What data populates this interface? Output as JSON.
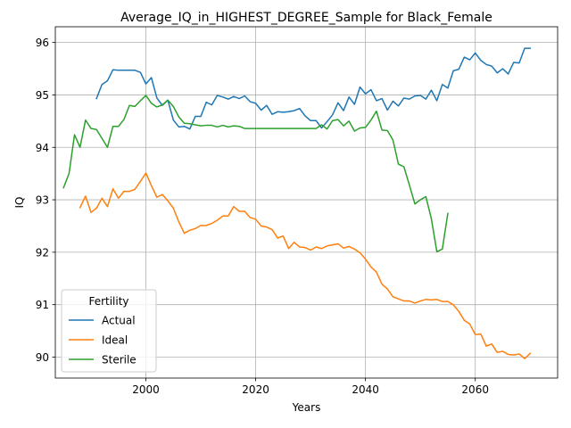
{
  "chart_data": {
    "type": "line",
    "title": "Average_IQ_in_HIGHEST_DEGREE_Sample for Black_Female",
    "xlabel": "Years",
    "ylabel": "IQ",
    "xlim": [
      1983.5,
      2075
    ],
    "ylim": [
      89.6,
      96.3
    ],
    "xticks": [
      2000,
      2020,
      2040,
      2060
    ],
    "yticks": [
      90,
      91,
      92,
      93,
      94,
      95,
      96
    ],
    "grid": true,
    "legend": {
      "title": "Fertility",
      "placement": "lower-left"
    },
    "series": [
      {
        "name": "Actual",
        "color": "#1f77b4",
        "points": [
          [
            1991,
            94.93
          ],
          [
            1992,
            95.2
          ],
          [
            1993,
            95.27
          ],
          [
            1994,
            95.48
          ],
          [
            1995,
            95.47
          ],
          [
            1996,
            95.47
          ],
          [
            1997,
            95.47
          ],
          [
            1998,
            95.47
          ],
          [
            1999,
            95.43
          ],
          [
            2000,
            95.21
          ],
          [
            2001,
            95.33
          ],
          [
            2002,
            94.94
          ],
          [
            2003,
            94.8
          ],
          [
            2004,
            94.9
          ],
          [
            2005,
            94.52
          ],
          [
            2006,
            94.39
          ],
          [
            2007,
            94.4
          ],
          [
            2008,
            94.35
          ],
          [
            2009,
            94.59
          ],
          [
            2010,
            94.59
          ],
          [
            2011,
            94.86
          ],
          [
            2012,
            94.81
          ],
          [
            2013,
            94.99
          ],
          [
            2014,
            94.96
          ],
          [
            2015,
            94.92
          ],
          [
            2016,
            94.97
          ],
          [
            2017,
            94.93
          ],
          [
            2018,
            94.98
          ],
          [
            2019,
            94.87
          ],
          [
            2020,
            94.84
          ],
          [
            2021,
            94.71
          ],
          [
            2022,
            94.8
          ],
          [
            2023,
            94.63
          ],
          [
            2024,
            94.68
          ],
          [
            2025,
            94.67
          ],
          [
            2026,
            94.68
          ],
          [
            2027,
            94.7
          ],
          [
            2028,
            94.74
          ],
          [
            2029,
            94.6
          ],
          [
            2030,
            94.51
          ],
          [
            2031,
            94.51
          ],
          [
            2032,
            94.37
          ],
          [
            2033,
            94.49
          ],
          [
            2034,
            94.62
          ],
          [
            2035,
            94.85
          ],
          [
            2036,
            94.7
          ],
          [
            2037,
            94.96
          ],
          [
            2038,
            94.82
          ],
          [
            2039,
            95.15
          ],
          [
            2040,
            95.02
          ],
          [
            2041,
            95.1
          ],
          [
            2042,
            94.89
          ],
          [
            2043,
            94.93
          ],
          [
            2044,
            94.71
          ],
          [
            2045,
            94.88
          ],
          [
            2046,
            94.79
          ],
          [
            2047,
            94.94
          ],
          [
            2048,
            94.92
          ],
          [
            2049,
            94.98
          ],
          [
            2050,
            94.99
          ],
          [
            2051,
            94.92
          ],
          [
            2052,
            95.09
          ],
          [
            2053,
            94.89
          ],
          [
            2054,
            95.2
          ],
          [
            2055,
            95.13
          ],
          [
            2056,
            95.46
          ],
          [
            2057,
            95.49
          ],
          [
            2058,
            95.72
          ],
          [
            2059,
            95.67
          ],
          [
            2060,
            95.8
          ],
          [
            2061,
            95.66
          ],
          [
            2062,
            95.58
          ],
          [
            2063,
            95.55
          ],
          [
            2064,
            95.42
          ],
          [
            2065,
            95.5
          ],
          [
            2066,
            95.4
          ],
          [
            2067,
            95.62
          ],
          [
            2068,
            95.61
          ],
          [
            2069,
            95.89
          ],
          [
            2070,
            95.89
          ]
        ]
      },
      {
        "name": "Ideal",
        "color": "#ff7f0e",
        "points": [
          [
            1988,
            92.85
          ],
          [
            1989,
            93.07
          ],
          [
            1990,
            92.76
          ],
          [
            1991,
            92.84
          ],
          [
            1992,
            93.03
          ],
          [
            1993,
            92.87
          ],
          [
            1994,
            93.21
          ],
          [
            1995,
            93.03
          ],
          [
            1996,
            93.16
          ],
          [
            1997,
            93.16
          ],
          [
            1998,
            93.2
          ],
          [
            1999,
            93.35
          ],
          [
            2000,
            93.51
          ],
          [
            2001,
            93.27
          ],
          [
            2002,
            93.05
          ],
          [
            2003,
            93.1
          ],
          [
            2004,
            92.98
          ],
          [
            2005,
            92.84
          ],
          [
            2006,
            92.58
          ],
          [
            2007,
            92.36
          ],
          [
            2008,
            92.42
          ],
          [
            2009,
            92.45
          ],
          [
            2010,
            92.51
          ],
          [
            2011,
            92.51
          ],
          [
            2012,
            92.55
          ],
          [
            2013,
            92.61
          ],
          [
            2014,
            92.69
          ],
          [
            2015,
            92.69
          ],
          [
            2016,
            92.87
          ],
          [
            2017,
            92.78
          ],
          [
            2018,
            92.78
          ],
          [
            2019,
            92.66
          ],
          [
            2020,
            92.63
          ],
          [
            2021,
            92.5
          ],
          [
            2022,
            92.48
          ],
          [
            2023,
            92.43
          ],
          [
            2024,
            92.27
          ],
          [
            2025,
            92.31
          ],
          [
            2026,
            92.07
          ],
          [
            2027,
            92.19
          ],
          [
            2028,
            92.1
          ],
          [
            2029,
            92.09
          ],
          [
            2030,
            92.04
          ],
          [
            2031,
            92.1
          ],
          [
            2032,
            92.07
          ],
          [
            2033,
            92.12
          ],
          [
            2034,
            92.14
          ],
          [
            2035,
            92.16
          ],
          [
            2036,
            92.08
          ],
          [
            2037,
            92.11
          ],
          [
            2038,
            92.06
          ],
          [
            2039,
            91.99
          ],
          [
            2040,
            91.87
          ],
          [
            2041,
            91.72
          ],
          [
            2042,
            91.62
          ],
          [
            2043,
            91.39
          ],
          [
            2044,
            91.3
          ],
          [
            2045,
            91.15
          ],
          [
            2046,
            91.11
          ],
          [
            2047,
            91.07
          ],
          [
            2048,
            91.07
          ],
          [
            2049,
            91.03
          ],
          [
            2050,
            91.07
          ],
          [
            2051,
            91.1
          ],
          [
            2052,
            91.09
          ],
          [
            2053,
            91.1
          ],
          [
            2054,
            91.06
          ],
          [
            2055,
            91.06
          ],
          [
            2056,
            91.0
          ],
          [
            2057,
            90.87
          ],
          [
            2058,
            90.7
          ],
          [
            2059,
            90.63
          ],
          [
            2060,
            90.43
          ],
          [
            2061,
            90.44
          ],
          [
            2062,
            90.21
          ],
          [
            2063,
            90.25
          ],
          [
            2064,
            90.09
          ],
          [
            2065,
            90.11
          ],
          [
            2066,
            90.05
          ],
          [
            2067,
            90.04
          ],
          [
            2068,
            90.06
          ],
          [
            2069,
            89.97
          ],
          [
            2070,
            90.07
          ]
        ]
      },
      {
        "name": "Sterile",
        "color": "#2ca02c",
        "points": [
          [
            1985,
            93.23
          ],
          [
            1986,
            93.5
          ],
          [
            1987,
            94.24
          ],
          [
            1988,
            94.0
          ],
          [
            1989,
            94.52
          ],
          [
            1990,
            94.36
          ],
          [
            1991,
            94.34
          ],
          [
            1992,
            94.17
          ],
          [
            1993,
            94.0
          ],
          [
            1994,
            94.4
          ],
          [
            1995,
            94.4
          ],
          [
            1996,
            94.53
          ],
          [
            1997,
            94.8
          ],
          [
            1998,
            94.78
          ],
          [
            1999,
            94.89
          ],
          [
            2000,
            94.99
          ],
          [
            2001,
            94.84
          ],
          [
            2002,
            94.77
          ],
          [
            2003,
            94.81
          ],
          [
            2004,
            94.9
          ],
          [
            2005,
            94.78
          ],
          [
            2006,
            94.58
          ],
          [
            2007,
            94.46
          ],
          [
            2008,
            94.45
          ],
          [
            2009,
            94.43
          ],
          [
            2010,
            94.41
          ],
          [
            2011,
            94.42
          ],
          [
            2012,
            94.42
          ],
          [
            2013,
            94.39
          ],
          [
            2014,
            94.42
          ],
          [
            2015,
            94.39
          ],
          [
            2016,
            94.41
          ],
          [
            2017,
            94.4
          ],
          [
            2018,
            94.36
          ],
          [
            2019,
            94.36
          ],
          [
            2020,
            94.36
          ],
          [
            2021,
            94.36
          ],
          [
            2022,
            94.36
          ],
          [
            2023,
            94.36
          ],
          [
            2024,
            94.36
          ],
          [
            2025,
            94.36
          ],
          [
            2026,
            94.36
          ],
          [
            2027,
            94.36
          ],
          [
            2028,
            94.36
          ],
          [
            2029,
            94.36
          ],
          [
            2030,
            94.36
          ],
          [
            2031,
            94.36
          ],
          [
            2032,
            94.43
          ],
          [
            2033,
            94.35
          ],
          [
            2034,
            94.51
          ],
          [
            2035,
            94.53
          ],
          [
            2036,
            94.41
          ],
          [
            2037,
            94.5
          ],
          [
            2038,
            94.31
          ],
          [
            2039,
            94.37
          ],
          [
            2040,
            94.38
          ],
          [
            2041,
            94.52
          ],
          [
            2042,
            94.69
          ],
          [
            2043,
            94.33
          ],
          [
            2044,
            94.32
          ],
          [
            2045,
            94.14
          ],
          [
            2046,
            93.68
          ],
          [
            2047,
            93.63
          ],
          [
            2048,
            93.28
          ],
          [
            2049,
            92.92
          ],
          [
            2050,
            93.0
          ],
          [
            2051,
            93.06
          ],
          [
            2052,
            92.64
          ],
          [
            2053,
            92.01
          ],
          [
            2054,
            92.06
          ],
          [
            2055,
            92.74
          ]
        ]
      }
    ]
  }
}
